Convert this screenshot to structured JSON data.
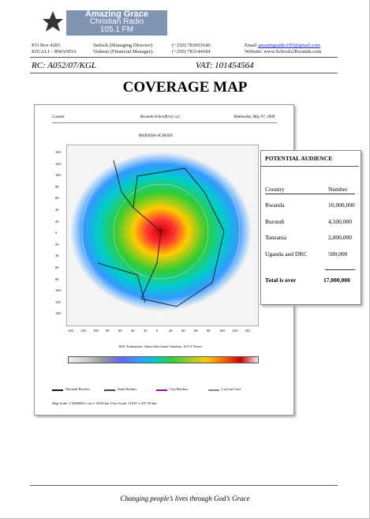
{
  "header": {
    "logo": {
      "line1": "Amazing Grace",
      "line2": "Christian Radio",
      "line3": "105.1 FM"
    },
    "address": [
      "P.O Box 4283",
      "KIGALI – RWANDA"
    ],
    "contacts": [
      {
        "name": "Sadock (Managing Director):",
        "phone": "(+250) 783001646"
      },
      {
        "name": "Vedaste (Financial Manager):",
        "phone": "(+250) 783144184"
      }
    ],
    "email_label": "Email",
    "email": "amazingradio105@gmail.com",
    "website": "Website: www.Schools2Rwanda.com",
    "rc": "RC: A052/07/KGL",
    "vat": "VAT: 101454564"
  },
  "title": "COVERAGE MAP",
  "map": {
    "left_caption": "Coastal",
    "center_caption": "Rwanda-Schoolfirst1.rs2",
    "date": "Wednesday, May 07, 2008",
    "map_title": "RWANDA-SCHOOF",
    "axis_ticks": [
      "140",
      "120",
      "100",
      "80",
      "60",
      "40",
      "20",
      "0",
      "20",
      "40",
      "60",
      "80",
      "100",
      "120",
      "140"
    ],
    "bottom_caption": "1kW Transmitter, Omni-directional Antenna, 10.0 T Tower",
    "legend": [
      "National Borders",
      "State Borders",
      "City Borders",
      "Lat Lon Grid"
    ],
    "scale": "Map Scale: 1:2000000     1 cm = 20.00 km     View Scale: 318.87 x 297.58 km"
  },
  "audience": {
    "title": "POTENTIAL AUDIENCE",
    "columns": [
      "Country",
      "Number"
    ],
    "rows": [
      [
        "Rwanda",
        "10,000,000"
      ],
      [
        "Burundi",
        "4,500,000"
      ],
      [
        "Tanzania",
        "2,000,000"
      ],
      [
        "Uganda and DRC",
        "500,000"
      ]
    ],
    "total": [
      "Total is over",
      "17,000,000"
    ]
  },
  "footer": "Changing people’s lives through God’s Grace"
}
